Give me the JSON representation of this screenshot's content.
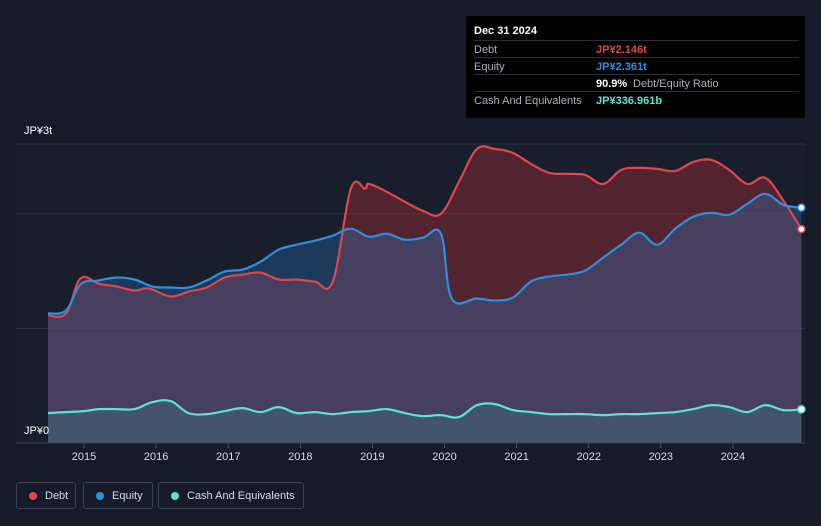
{
  "tooltip": {
    "date": "Dec 31 2024",
    "debt_label": "Debt",
    "debt_value": "JP¥2.146t",
    "equity_label": "Equity",
    "equity_value": "JP¥2.361t",
    "ratio_value": "90.9%",
    "ratio_label": "Debt/Equity Ratio",
    "cash_label": "Cash And Equivalents",
    "cash_value": "JP¥336.961b"
  },
  "legend": {
    "debt": "Debt",
    "equity": "Equity",
    "cash": "Cash And Equivalents"
  },
  "colors": {
    "debt": "#e0474c",
    "equity": "#2e8fdf",
    "cash": "#5fe3cf"
  },
  "chart_data": {
    "type": "area",
    "title": "",
    "xlabel": "",
    "ylabel": "",
    "ylim": [
      0,
      3
    ],
    "ytick_labels": [
      "JP¥0",
      "JP¥3t"
    ],
    "xtick_labels": [
      "2015",
      "2016",
      "2017",
      "2018",
      "2019",
      "2020",
      "2021",
      "2022",
      "2023",
      "2024"
    ],
    "xlim": [
      2014.5,
      2025.0
    ],
    "units": "JP¥ trillions",
    "series": [
      {
        "name": "Debt",
        "x": [
          2014.5,
          2014.75,
          2014.95,
          2015.2,
          2015.45,
          2015.7,
          2015.9,
          2016.2,
          2016.45,
          2016.7,
          2016.95,
          2017.2,
          2017.45,
          2017.7,
          2017.95,
          2018.2,
          2018.45,
          2018.7,
          2018.9,
          2018.95,
          2019.2,
          2019.45,
          2019.7,
          2019.95,
          2020.2,
          2020.45,
          2020.7,
          2020.95,
          2021.2,
          2021.45,
          2021.7,
          2021.95,
          2022.2,
          2022.45,
          2022.7,
          2022.95,
          2023.2,
          2023.45,
          2023.7,
          2023.95,
          2024.2,
          2024.45,
          2024.7,
          2024.95
        ],
        "y": [
          1.28,
          1.3,
          1.65,
          1.6,
          1.57,
          1.53,
          1.55,
          1.47,
          1.52,
          1.56,
          1.66,
          1.69,
          1.71,
          1.64,
          1.64,
          1.62,
          1.62,
          2.55,
          2.55,
          2.6,
          2.52,
          2.42,
          2.33,
          2.3,
          2.62,
          2.95,
          2.95,
          2.91,
          2.8,
          2.71,
          2.7,
          2.69,
          2.6,
          2.74,
          2.76,
          2.75,
          2.73,
          2.82,
          2.84,
          2.74,
          2.6,
          2.66,
          2.43,
          2.146
        ]
      },
      {
        "name": "Equity",
        "x": [
          2014.5,
          2014.75,
          2014.95,
          2015.2,
          2015.45,
          2015.7,
          2015.95,
          2016.2,
          2016.45,
          2016.7,
          2016.95,
          2017.2,
          2017.45,
          2017.7,
          2017.95,
          2018.2,
          2018.45,
          2018.7,
          2018.95,
          2019.2,
          2019.45,
          2019.7,
          2019.95,
          2020.1,
          2020.45,
          2020.7,
          2020.95,
          2021.2,
          2021.45,
          2021.7,
          2021.95,
          2022.2,
          2022.45,
          2022.7,
          2022.95,
          2023.2,
          2023.45,
          2023.7,
          2023.95,
          2024.2,
          2024.45,
          2024.7,
          2024.95
        ],
        "y": [
          1.3,
          1.33,
          1.59,
          1.63,
          1.66,
          1.64,
          1.57,
          1.56,
          1.56,
          1.63,
          1.72,
          1.74,
          1.82,
          1.94,
          1.99,
          2.03,
          2.08,
          2.15,
          2.07,
          2.1,
          2.04,
          2.06,
          2.1,
          1.45,
          1.45,
          1.43,
          1.46,
          1.62,
          1.67,
          1.69,
          1.73,
          1.86,
          1.99,
          2.11,
          1.99,
          2.15,
          2.27,
          2.31,
          2.29,
          2.4,
          2.5,
          2.39,
          2.361
        ]
      },
      {
        "name": "Cash And Equivalents",
        "x": [
          2014.5,
          2014.75,
          2015.0,
          2015.2,
          2015.45,
          2015.7,
          2015.95,
          2016.2,
          2016.45,
          2016.7,
          2016.95,
          2017.2,
          2017.45,
          2017.7,
          2017.95,
          2018.2,
          2018.45,
          2018.7,
          2018.95,
          2019.2,
          2019.45,
          2019.7,
          2019.95,
          2020.2,
          2020.45,
          2020.7,
          2020.95,
          2021.2,
          2021.45,
          2021.7,
          2021.95,
          2022.2,
          2022.45,
          2022.7,
          2022.95,
          2023.2,
          2023.45,
          2023.7,
          2023.95,
          2024.2,
          2024.45,
          2024.7,
          2024.95
        ],
        "y": [
          0.3,
          0.31,
          0.32,
          0.34,
          0.34,
          0.34,
          0.41,
          0.42,
          0.3,
          0.29,
          0.32,
          0.35,
          0.31,
          0.36,
          0.3,
          0.31,
          0.29,
          0.31,
          0.32,
          0.34,
          0.3,
          0.27,
          0.28,
          0.26,
          0.38,
          0.39,
          0.33,
          0.31,
          0.29,
          0.29,
          0.29,
          0.28,
          0.29,
          0.29,
          0.3,
          0.31,
          0.34,
          0.38,
          0.36,
          0.31,
          0.38,
          0.33,
          0.337
        ]
      }
    ]
  }
}
